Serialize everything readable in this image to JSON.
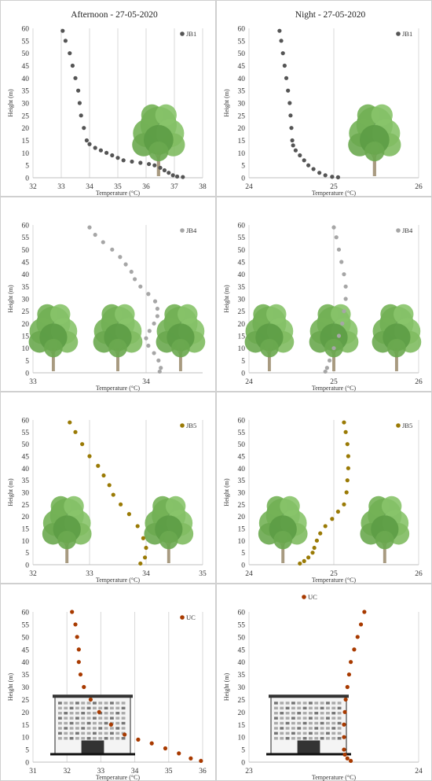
{
  "colors": {
    "JB1": "#555555",
    "JB4": "#a6a6a6",
    "JB5": "#9a7a05",
    "UC": "#a83a00",
    "grid": "#d9d9d9",
    "panel_border": "#d0d0d0"
  },
  "chart_data": [
    {
      "type": "scatter",
      "title": "Afternoon  - 27-05-2020",
      "xlabel": "Temperature (°C)",
      "ylabel": "Height (m)",
      "xlim": [
        32,
        38
      ],
      "ylim": [
        0,
        60
      ],
      "xticks": [
        "32",
        "33",
        "34",
        "35",
        "36",
        "37",
        "38"
      ],
      "yticks": [
        "0",
        "5",
        "10",
        "15",
        "20",
        "25",
        "30",
        "35",
        "40",
        "45",
        "50",
        "55",
        "60"
      ],
      "legend": "top-right",
      "illustration": "tree",
      "series": [
        {
          "name": "JB1",
          "color_key": "JB1",
          "points": [
            [
              33.05,
              59
            ],
            [
              33.15,
              55
            ],
            [
              33.3,
              50
            ],
            [
              33.4,
              45
            ],
            [
              33.5,
              40
            ],
            [
              33.6,
              35
            ],
            [
              33.65,
              30
            ],
            [
              33.7,
              25
            ],
            [
              33.8,
              20
            ],
            [
              33.9,
              15
            ],
            [
              34,
              13.5
            ],
            [
              34.2,
              12
            ],
            [
              34.4,
              11
            ],
            [
              34.6,
              10
            ],
            [
              34.8,
              9
            ],
            [
              35,
              8
            ],
            [
              35.2,
              7
            ],
            [
              35.5,
              6.5
            ],
            [
              35.8,
              6
            ],
            [
              36.1,
              5.5
            ],
            [
              36.3,
              5
            ],
            [
              36.5,
              4
            ],
            [
              36.65,
              3
            ],
            [
              36.8,
              2
            ],
            [
              36.95,
              1
            ],
            [
              37.1,
              0.5
            ],
            [
              37.3,
              0.3
            ]
          ]
        }
      ]
    },
    {
      "type": "scatter",
      "title": "Night - 27-05-2020",
      "xlabel": "Temperature (°C)",
      "ylabel": "Height (m)",
      "xlim": [
        24,
        26
      ],
      "ylim": [
        0,
        60
      ],
      "xticks": [
        "24",
        "25",
        "26"
      ],
      "yticks": [
        "0",
        "5",
        "10",
        "15",
        "20",
        "25",
        "30",
        "35",
        "40",
        "45",
        "50",
        "55",
        "60"
      ],
      "legend": "top-right",
      "illustration": "tree",
      "series": [
        {
          "name": "JB1",
          "color_key": "JB1",
          "points": [
            [
              24.36,
              59
            ],
            [
              24.38,
              55
            ],
            [
              24.4,
              50
            ],
            [
              24.42,
              45
            ],
            [
              24.44,
              40
            ],
            [
              24.46,
              35
            ],
            [
              24.48,
              30
            ],
            [
              24.49,
              25
            ],
            [
              24.5,
              20
            ],
            [
              24.51,
              15
            ],
            [
              24.52,
              13
            ],
            [
              24.55,
              11
            ],
            [
              24.6,
              9
            ],
            [
              24.65,
              7
            ],
            [
              24.7,
              5
            ],
            [
              24.76,
              3.5
            ],
            [
              24.83,
              2
            ],
            [
              24.9,
              1
            ],
            [
              24.98,
              0.4
            ],
            [
              25.05,
              0.2
            ]
          ]
        }
      ]
    },
    {
      "type": "scatter",
      "title": "",
      "xlabel": "Temperature (°C)",
      "ylabel": "Height (m)",
      "xlim": [
        33,
        34.5
      ],
      "ylim": [
        0,
        60
      ],
      "xticks": [
        "33",
        "34"
      ],
      "yticks": [
        "0",
        "5",
        "10",
        "15",
        "20",
        "25",
        "30",
        "35",
        "40",
        "45",
        "50",
        "55",
        "60"
      ],
      "legend": "top-right",
      "illustration": "trees3",
      "series": [
        {
          "name": "JB4",
          "color_key": "JB4",
          "points": [
            [
              33.5,
              59
            ],
            [
              33.55,
              56
            ],
            [
              33.62,
              53
            ],
            [
              33.7,
              50
            ],
            [
              33.77,
              47
            ],
            [
              33.82,
              44
            ],
            [
              33.87,
              41
            ],
            [
              33.9,
              38
            ],
            [
              33.95,
              35
            ],
            [
              34.02,
              32
            ],
            [
              34.08,
              29
            ],
            [
              34.1,
              26
            ],
            [
              34.1,
              23
            ],
            [
              34.07,
              20
            ],
            [
              34.03,
              17
            ],
            [
              34.0,
              14
            ],
            [
              34.02,
              11
            ],
            [
              34.07,
              8
            ],
            [
              34.11,
              5
            ],
            [
              34.13,
              2
            ],
            [
              34.12,
              0.5
            ]
          ]
        }
      ]
    },
    {
      "type": "scatter",
      "title": "",
      "xlabel": "Temperature (°C)",
      "ylabel": "Height (m)",
      "xlim": [
        24,
        26
      ],
      "ylim": [
        0,
        60
      ],
      "xticks": [
        "24",
        "25",
        "26"
      ],
      "yticks": [
        "0",
        "5",
        "10",
        "15",
        "20",
        "25",
        "30",
        "35",
        "40",
        "45",
        "50",
        "55",
        "60"
      ],
      "legend": "top-right",
      "illustration": "trees3",
      "series": [
        {
          "name": "JB4",
          "color_key": "JB4",
          "points": [
            [
              25.0,
              59
            ],
            [
              25.03,
              55
            ],
            [
              25.06,
              50
            ],
            [
              25.09,
              45
            ],
            [
              25.12,
              40
            ],
            [
              25.14,
              35
            ],
            [
              25.14,
              30
            ],
            [
              25.12,
              25
            ],
            [
              25.1,
              20
            ],
            [
              25.06,
              15
            ],
            [
              25.0,
              10
            ],
            [
              24.95,
              5
            ],
            [
              24.92,
              2
            ],
            [
              24.9,
              0.5
            ]
          ]
        }
      ]
    },
    {
      "type": "scatter",
      "title": "",
      "xlabel": "Temperature (°C)",
      "ylabel": "Height (m)",
      "xlim": [
        32,
        35
      ],
      "ylim": [
        0,
        60
      ],
      "xticks": [
        "32",
        "33",
        "34",
        "35"
      ],
      "yticks": [
        "0",
        "5",
        "10",
        "15",
        "20",
        "25",
        "30",
        "35",
        "40",
        "45",
        "50",
        "55",
        "60"
      ],
      "legend": "top-right",
      "illustration": "trees2",
      "series": [
        {
          "name": "JB5",
          "color_key": "JB5",
          "points": [
            [
              32.65,
              59
            ],
            [
              32.75,
              55
            ],
            [
              32.87,
              50
            ],
            [
              33.0,
              45
            ],
            [
              33.15,
              41
            ],
            [
              33.25,
              37
            ],
            [
              33.35,
              33
            ],
            [
              33.42,
              29
            ],
            [
              33.55,
              25
            ],
            [
              33.7,
              21
            ],
            [
              33.85,
              16
            ],
            [
              33.95,
              11
            ],
            [
              34.0,
              7
            ],
            [
              33.98,
              3
            ],
            [
              33.9,
              0.5
            ]
          ]
        }
      ]
    },
    {
      "type": "scatter",
      "title": "",
      "xlabel": "Temperature (°C)",
      "ylabel": "Height (m)",
      "xlim": [
        24,
        26
      ],
      "ylim": [
        0,
        60
      ],
      "xticks": [
        "24",
        "25",
        "26"
      ],
      "yticks": [
        "0",
        "5",
        "10",
        "15",
        "20",
        "25",
        "30",
        "35",
        "40",
        "45",
        "50",
        "55",
        "60"
      ],
      "legend": "top-right",
      "illustration": "trees2",
      "series": [
        {
          "name": "JB5",
          "color_key": "JB5",
          "points": [
            [
              25.12,
              59
            ],
            [
              25.14,
              55
            ],
            [
              25.16,
              50
            ],
            [
              25.17,
              45
            ],
            [
              25.17,
              40
            ],
            [
              25.16,
              35
            ],
            [
              25.15,
              30
            ],
            [
              25.12,
              25
            ],
            [
              25.05,
              22
            ],
            [
              24.98,
              19
            ],
            [
              24.9,
              16
            ],
            [
              24.84,
              13
            ],
            [
              24.8,
              10
            ],
            [
              24.77,
              7
            ],
            [
              24.75,
              5
            ],
            [
              24.7,
              3
            ],
            [
              24.65,
              1.5
            ],
            [
              24.6,
              0.5
            ]
          ]
        }
      ]
    },
    {
      "type": "scatter",
      "title": "",
      "xlabel": "Temperature (°C)",
      "ylabel": "Height (m)",
      "xlim": [
        31,
        36
      ],
      "ylim": [
        0,
        60
      ],
      "xticks": [
        "31",
        "32",
        "33",
        "34",
        "35",
        "36"
      ],
      "yticks": [
        "0",
        "5",
        "10",
        "15",
        "20",
        "25",
        "30",
        "35",
        "40",
        "45",
        "50",
        "55",
        "60"
      ],
      "legend": "top-right",
      "illustration": "building",
      "series": [
        {
          "name": "UC",
          "color_key": "UC",
          "points": [
            [
              32.15,
              60
            ],
            [
              32.25,
              55
            ],
            [
              32.3,
              50
            ],
            [
              32.35,
              45
            ],
            [
              32.35,
              40
            ],
            [
              32.4,
              35
            ],
            [
              32.5,
              30
            ],
            [
              32.7,
              25
            ],
            [
              32.95,
              20
            ],
            [
              33.3,
              15
            ],
            [
              33.7,
              11
            ],
            [
              34.1,
              9
            ],
            [
              34.5,
              7.5
            ],
            [
              34.9,
              5.5
            ],
            [
              35.3,
              3.5
            ],
            [
              35.65,
              1.5
            ],
            [
              35.95,
              0.5
            ]
          ]
        }
      ]
    },
    {
      "type": "scatter",
      "title": "",
      "xlabel": "Temperature (°C)",
      "ylabel": "Height (m)",
      "xlim": [
        23,
        24
      ],
      "ylim": [
        0,
        60
      ],
      "xticks": [
        "23",
        "24"
      ],
      "yticks": [
        "0",
        "5",
        "10",
        "15",
        "20",
        "25",
        "30",
        "35",
        "40",
        "45",
        "50",
        "55",
        "60"
      ],
      "legend": "top-left",
      "illustration": "building",
      "series": [
        {
          "name": "UC",
          "color_key": "UC",
          "points": [
            [
              23.68,
              60
            ],
            [
              23.66,
              55
            ],
            [
              23.64,
              50
            ],
            [
              23.62,
              45
            ],
            [
              23.6,
              40
            ],
            [
              23.59,
              35
            ],
            [
              23.58,
              30
            ],
            [
              23.57,
              25
            ],
            [
              23.565,
              20
            ],
            [
              23.56,
              15
            ],
            [
              23.56,
              10
            ],
            [
              23.56,
              5
            ],
            [
              23.565,
              3
            ],
            [
              23.58,
              1.5
            ],
            [
              23.6,
              0.5
            ]
          ]
        }
      ]
    }
  ]
}
